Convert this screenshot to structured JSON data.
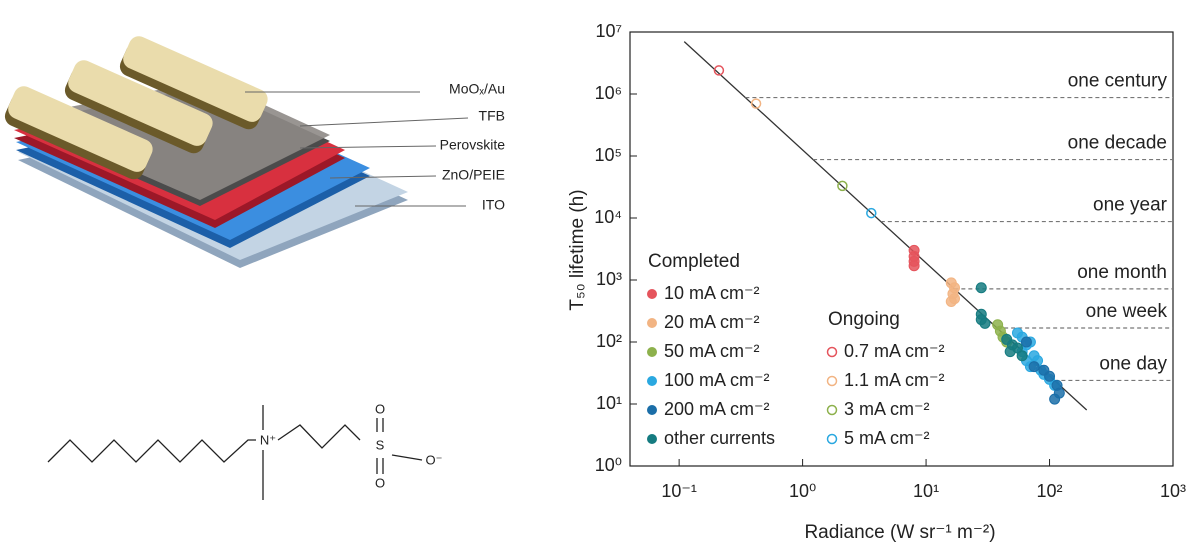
{
  "device": {
    "layers": [
      "MoOₓ/Au",
      "TFB",
      "Perovskite",
      "ZnO/PEIE",
      "ITO"
    ]
  },
  "molecule": {
    "atoms": [
      "N⁺",
      "S",
      "O",
      "O",
      "O⁻"
    ]
  },
  "chart_data": {
    "type": "scatter",
    "xlabel": "Radiance (W sr⁻¹ m⁻²)",
    "ylabel": "T₅₀ lifetime (h)",
    "xscale": "log",
    "yscale": "log",
    "xlim": [
      0.04,
      1000
    ],
    "ylim": [
      1,
      10000000
    ],
    "xticks": [
      {
        "value": 0.1,
        "label": "10⁻¹"
      },
      {
        "value": 1,
        "label": "10⁰"
      },
      {
        "value": 10,
        "label": "10¹"
      },
      {
        "value": 100,
        "label": "10²"
      },
      {
        "value": 1000,
        "label": "10³"
      }
    ],
    "yticks": [
      {
        "value": 1,
        "label": "10⁰"
      },
      {
        "value": 10,
        "label": "10¹"
      },
      {
        "value": 100,
        "label": "10²"
      },
      {
        "value": 1000,
        "label": "10³"
      },
      {
        "value": 10000,
        "label": "10⁴"
      },
      {
        "value": 100000,
        "label": "10⁵"
      },
      {
        "value": 1000000,
        "label": "10⁶"
      },
      {
        "value": 10000000,
        "label": "10⁷"
      }
    ],
    "fit_line": {
      "color": "#333333",
      "x": [
        0.11,
        200
      ],
      "values": [
        7000000,
        8
      ]
    },
    "reference_lines": [
      {
        "label": "one century",
        "value": 876000
      },
      {
        "label": "one decade",
        "value": 87600
      },
      {
        "label": "one year",
        "value": 8760
      },
      {
        "label": "one month",
        "value": 720
      },
      {
        "label": "one week",
        "value": 168
      },
      {
        "label": "one day",
        "value": 24
      }
    ],
    "groups": [
      {
        "title": "Completed",
        "filled": true,
        "series": [
          {
            "name": "10 mA cm⁻²",
            "color": "#e5545c",
            "x": [
              8,
              8,
              8,
              8
            ],
            "values": [
              3000,
              2400,
              2000,
              1700
            ]
          },
          {
            "name": "20 mA cm⁻²",
            "color": "#f2b483",
            "x": [
              16,
              17,
              16.5,
              17,
              16
            ],
            "values": [
              900,
              750,
              600,
              500,
              450
            ]
          },
          {
            "name": "50 mA cm⁻²",
            "color": "#8db14c",
            "x": [
              38,
              40,
              42,
              45
            ],
            "values": [
              190,
              150,
              120,
              100
            ]
          },
          {
            "name": "100 mA cm⁻²",
            "color": "#2aa8e0",
            "x": [
              55,
              60,
              65,
              70,
              75,
              70,
              80,
              85,
              90,
              100,
              110,
              60,
              65
            ],
            "values": [
              140,
              120,
              90,
              100,
              60,
              40,
              50,
              35,
              30,
              25,
              20,
              70,
              50
            ]
          },
          {
            "name": "200 mA cm⁻²",
            "color": "#1b6ea8",
            "x": [
              65,
              75,
              90,
              100,
              115,
              120,
              110
            ],
            "values": [
              100,
              40,
              35,
              28,
              20,
              15,
              12
            ]
          },
          {
            "name": "other currents",
            "color": "#157b80",
            "x": [
              28,
              28,
              28,
              30,
              45,
              50,
              60,
              55,
              48
            ],
            "values": [
              750,
              280,
              230,
              200,
              110,
              90,
              60,
              80,
              70
            ]
          }
        ]
      },
      {
        "title": "Ongoing",
        "filled": false,
        "series": [
          {
            "name": "0.7 mA cm⁻²",
            "color": "#e5545c",
            "x": [
              0.21
            ],
            "values": [
              2400000
            ]
          },
          {
            "name": "1.1 mA cm⁻²",
            "color": "#f2b483",
            "x": [
              0.42
            ],
            "values": [
              700000
            ]
          },
          {
            "name": "3 mA cm⁻²",
            "color": "#8db14c",
            "x": [
              2.1
            ],
            "values": [
              33000
            ]
          },
          {
            "name": "5 mA cm⁻²",
            "color": "#2aa8e0",
            "x": [
              3.6
            ],
            "values": [
              12000
            ]
          }
        ]
      }
    ]
  }
}
